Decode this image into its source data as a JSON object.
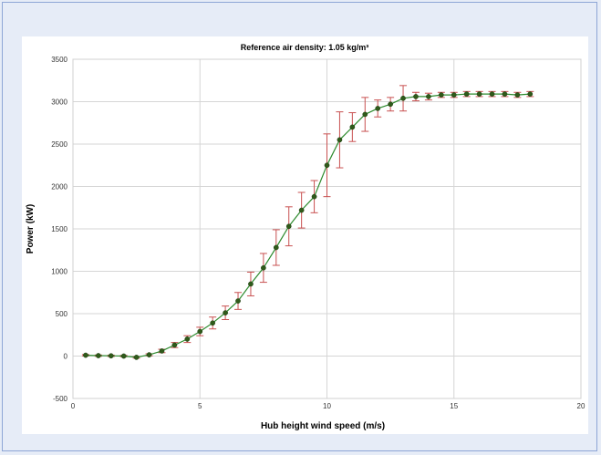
{
  "chart_data": {
    "type": "line",
    "title": "Reference air density: 1.05 kg/m³",
    "xlabel": "Hub height wind speed (m/s)",
    "ylabel": "Power (kW)",
    "xlim": [
      0,
      20
    ],
    "ylim": [
      -500,
      3500
    ],
    "xticks": [
      0,
      5,
      10,
      15,
      20
    ],
    "yticks": [
      -500,
      0,
      500,
      1000,
      1500,
      2000,
      2500,
      3000,
      3500
    ],
    "grid": true,
    "colors": {
      "line": "#2e8b2e",
      "marker": "#2f5a1a",
      "errorbar": "#c85050"
    },
    "series": [
      {
        "x": [
          0.5,
          1.0,
          1.5,
          2.0,
          2.5,
          3.0,
          3.5,
          4.0,
          4.5,
          5.0,
          5.5,
          6.0,
          6.5,
          7.0,
          7.5,
          8.0,
          8.5,
          9.0,
          9.5,
          10.0,
          10.5,
          11.0,
          11.5,
          12.0,
          12.5,
          13.0,
          13.5,
          14.0,
          14.5,
          15.0,
          15.5,
          16.0,
          16.5,
          17.0,
          17.5,
          18.0
        ],
        "y": [
          10,
          5,
          3,
          0,
          -15,
          15,
          60,
          130,
          200,
          290,
          390,
          510,
          650,
          850,
          1040,
          1280,
          1530,
          1720,
          1880,
          2250,
          2550,
          2700,
          2850,
          2920,
          2970,
          3040,
          3060,
          3060,
          3080,
          3080,
          3090,
          3090,
          3090,
          3090,
          3080,
          3090
        ],
        "error": [
          8,
          8,
          8,
          8,
          10,
          12,
          20,
          30,
          40,
          50,
          70,
          80,
          100,
          140,
          170,
          210,
          230,
          210,
          190,
          370,
          330,
          170,
          200,
          100,
          80,
          150,
          50,
          40,
          30,
          30,
          30,
          30,
          30,
          30,
          30,
          30
        ]
      }
    ]
  }
}
